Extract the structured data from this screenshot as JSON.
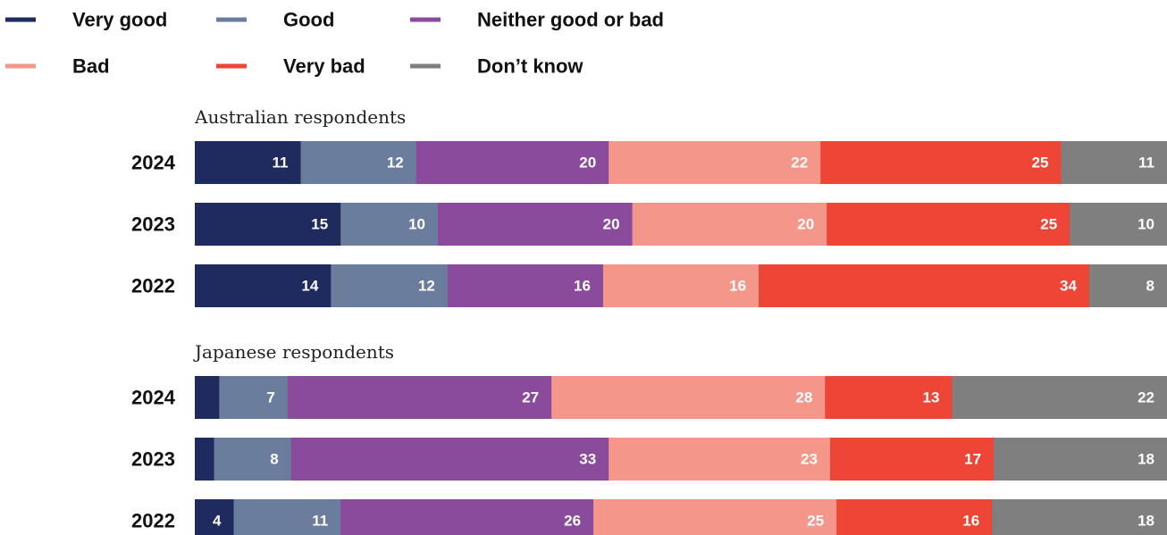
{
  "chart_data": {
    "type": "bar",
    "orientation": "horizontal",
    "stacked": true,
    "legend": {
      "placement": "top-left",
      "items": [
        {
          "name": "Very good",
          "color": "#1f2b5e"
        },
        {
          "name": "Good",
          "color": "#6a7d9d"
        },
        {
          "name": "Neither good or bad",
          "color": "#8b4b9c"
        },
        {
          "name": "Bad",
          "color": "#f4968a"
        },
        {
          "name": "Very bad",
          "color": "#ed4637"
        },
        {
          "name": "Don’t know",
          "color": "#7f7f7f"
        }
      ]
    },
    "panels": [
      {
        "title": "Australian respondents",
        "categories": [
          "2024",
          "2023",
          "2022"
        ],
        "series": [
          {
            "name": "Very good",
            "values": [
              11,
              15,
              14
            ]
          },
          {
            "name": "Good",
            "values": [
              12,
              10,
              12
            ]
          },
          {
            "name": "Neither good or bad",
            "values": [
              20,
              20,
              16
            ]
          },
          {
            "name": "Bad",
            "values": [
              22,
              20,
              16
            ]
          },
          {
            "name": "Very bad",
            "values": [
              25,
              25,
              34
            ]
          },
          {
            "name": "Don’t know",
            "values": [
              11,
              10,
              8
            ]
          }
        ],
        "labels": [
          [
            "11",
            "12",
            "20",
            "22",
            "25",
            "11"
          ],
          [
            "15",
            "10",
            "20",
            "20",
            "25",
            "10"
          ],
          [
            "14",
            "12",
            "16",
            "16",
            "34",
            "8"
          ]
        ]
      },
      {
        "title": "Japanese respondents",
        "categories": [
          "2024",
          "2023",
          "2022"
        ],
        "series": [
          {
            "name": "Very good",
            "values": [
              2.5,
              2,
              4
            ]
          },
          {
            "name": "Good",
            "values": [
              7,
              8,
              11
            ]
          },
          {
            "name": "Neither good or bad",
            "values": [
              27,
              33,
              26
            ]
          },
          {
            "name": "Bad",
            "values": [
              28,
              23,
              25
            ]
          },
          {
            "name": "Very bad",
            "values": [
              13,
              17,
              16
            ]
          },
          {
            "name": "Don’t know",
            "values": [
              22,
              18,
              18
            ]
          }
        ],
        "labels": [
          [
            "",
            "7",
            "27",
            "28",
            "13",
            "22"
          ],
          [
            "",
            "8",
            "33",
            "23",
            "17",
            "18"
          ],
          [
            "4",
            "11",
            "26",
            "25",
            "16",
            "18"
          ]
        ]
      }
    ]
  }
}
